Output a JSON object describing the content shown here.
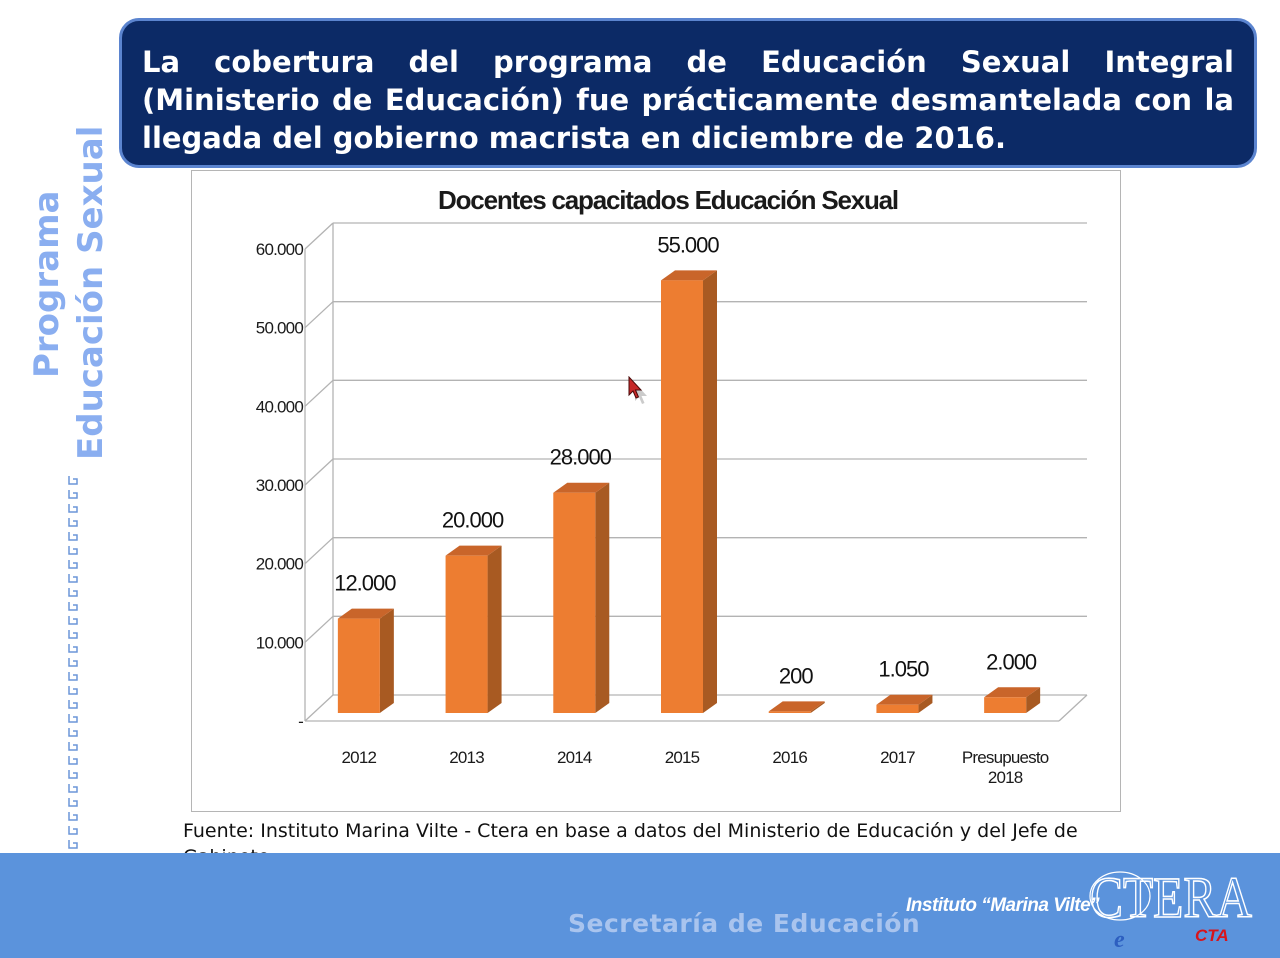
{
  "sidebar": {
    "title_line1": "Programa",
    "title_line2": "Educación Sexual"
  },
  "header": {
    "text": "La cobertura del programa de Educación Sexual Integral (Ministerio de Educación) fue prácticamente desmantelada con la llegada del gobierno macrista en diciembre de 2016."
  },
  "chart_data": {
    "type": "bar",
    "title": "Docentes capacitados Educación Sexual",
    "categories": [
      "2012",
      "2013",
      "2014",
      "2015",
      "2016",
      "2017",
      "Presupuesto 2018"
    ],
    "values": [
      12000,
      20000,
      28000,
      55000,
      200,
      1050,
      2000
    ],
    "data_labels": [
      "12.000",
      "20.000",
      "28.000",
      "55.000",
      "200",
      "1.050",
      "2.000"
    ],
    "y_ticks": [
      {
        "value": 0,
        "label": "-"
      },
      {
        "value": 10000,
        "label": "10.000"
      },
      {
        "value": 20000,
        "label": "20.000"
      },
      {
        "value": 30000,
        "label": "30.000"
      },
      {
        "value": 40000,
        "label": "40.000"
      },
      {
        "value": 50000,
        "label": "50.000"
      },
      {
        "value": 60000,
        "label": "60.000"
      }
    ],
    "ylim": [
      0,
      60000
    ],
    "grid": true,
    "bar_color": "#ed7d31",
    "bar_side_color": "#a85a22",
    "bar_top_color": "#c9652a"
  },
  "source": {
    "text": "Fuente: Instituto Marina Vilte - Ctera en base a datos del Ministerio de Educación y del Jefe de Gabinete"
  },
  "footer": {
    "secretaria": "Secretaría de Educación",
    "instituto": "Instituto “Marina Vilte”",
    "ctera_logo_text": "CTERA",
    "cta_logo_text": "CTA",
    "e_logo_text": "e",
    "background_color": "#5b93dc"
  }
}
